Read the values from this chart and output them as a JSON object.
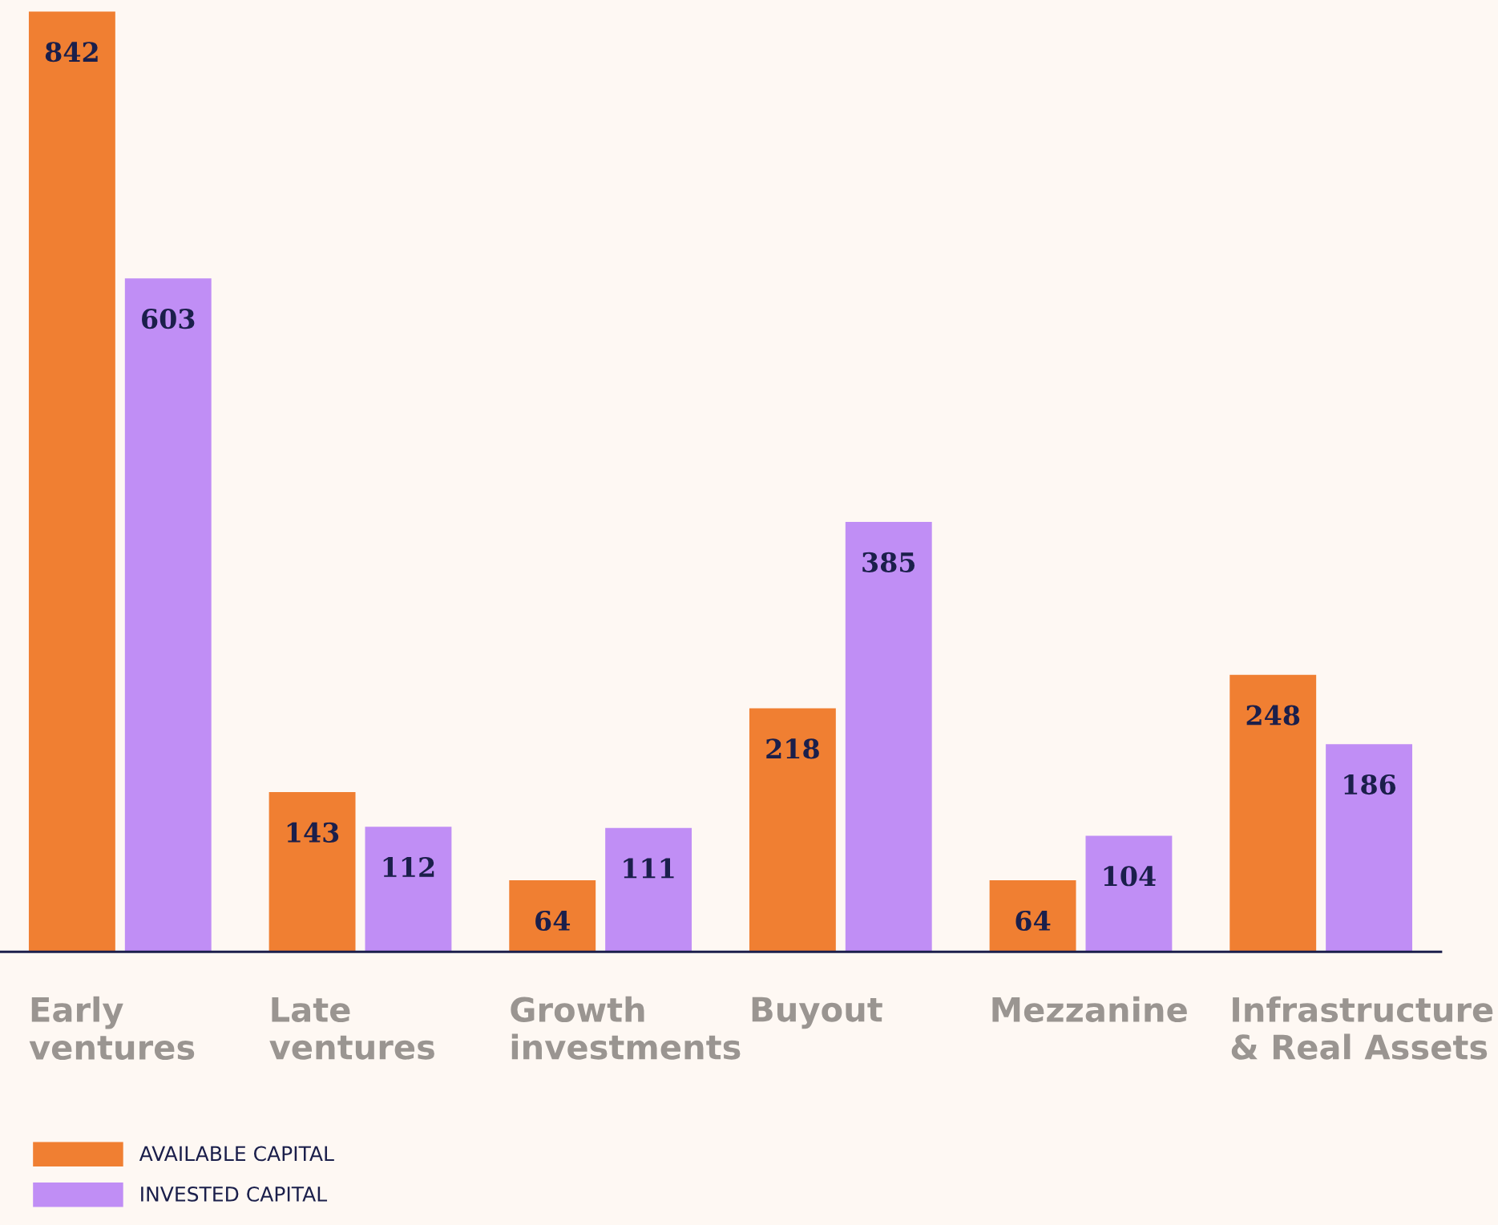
{
  "chart_data": {
    "type": "bar",
    "categories": [
      "Early\nventures",
      "Late\nventures",
      "Growth\ninvestments",
      "Buyout",
      "Mezzanine",
      "Infrastructure\n& Real Assets"
    ],
    "series": [
      {
        "name": "AVAILABLE CAPITAL",
        "color": "#f07f32",
        "values": [
          842,
          143,
          64,
          218,
          64,
          248
        ]
      },
      {
        "name": "INVESTED CAPITAL",
        "color": "#c08ef5",
        "values": [
          603,
          112,
          111,
          385,
          104,
          186
        ]
      }
    ],
    "data_labels": true,
    "tick_labels": "x",
    "grid": false,
    "legend": "bottom left"
  }
}
